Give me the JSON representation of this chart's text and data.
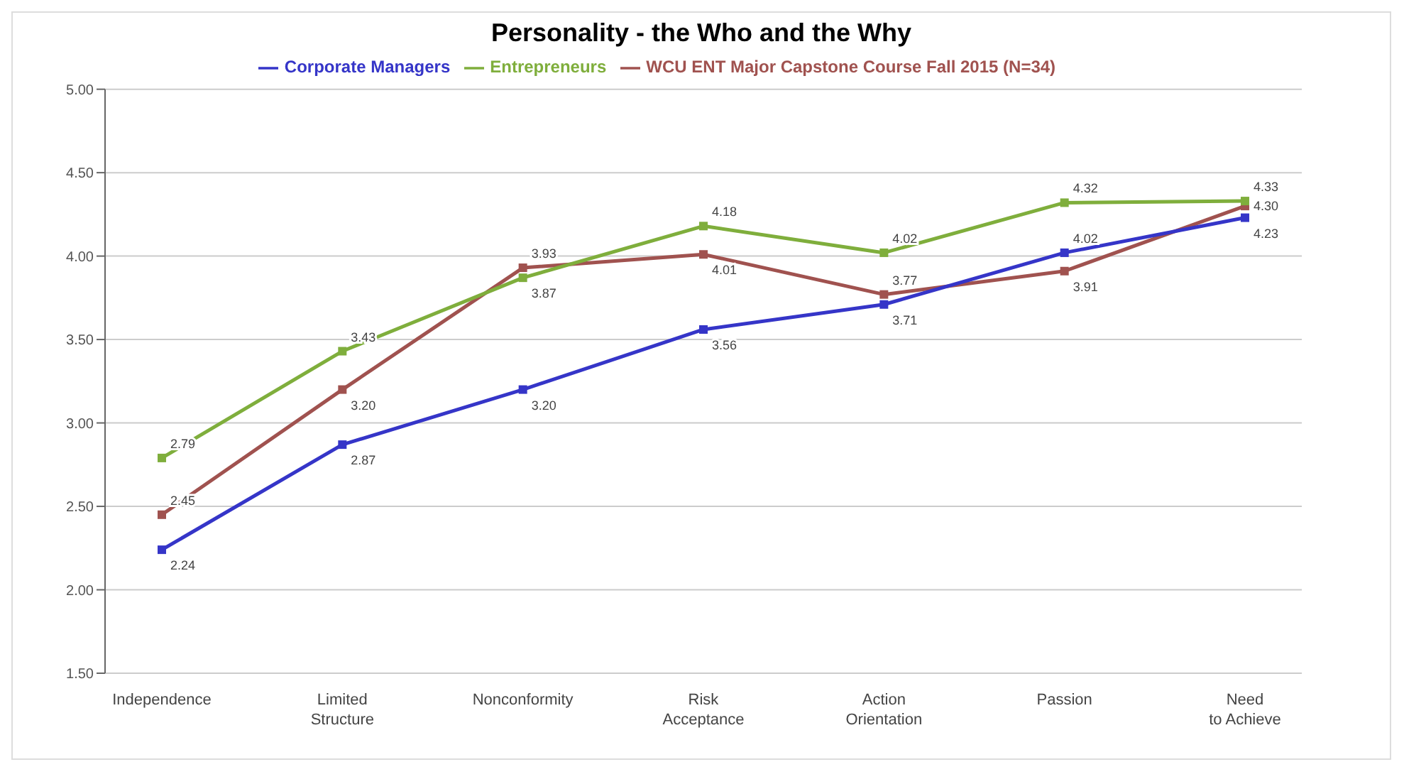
{
  "chart_data": {
    "type": "line",
    "title": "Personality - the Who and the Why",
    "categories": [
      "Independence",
      "Limited Structure",
      "Nonconformity",
      "Risk Acceptance",
      "Action Orientation",
      "Passion",
      "Need to Achieve"
    ],
    "series": [
      {
        "name": "WCU ENT Major Capstone Course Fall 2015 (N=34)",
        "color": "#a0524f",
        "values": [
          2.45,
          3.2,
          3.93,
          4.01,
          3.77,
          3.91,
          4.3
        ],
        "value_labels": [
          "2.45",
          "3.20",
          "3.93",
          "4.01",
          "3.77",
          "3.91",
          "4.30"
        ]
      },
      {
        "name": "Corporate Managers",
        "color": "#3535c8",
        "values": [
          2.24,
          2.87,
          3.2,
          3.56,
          3.71,
          4.02,
          4.23
        ],
        "value_labels": [
          "2.24",
          "2.87",
          "3.20",
          "3.56",
          "3.71",
          "4.02",
          "4.23"
        ]
      },
      {
        "name": "Entrepreneurs",
        "color": "#7fae3c",
        "values": [
          2.79,
          3.43,
          3.87,
          4.18,
          4.02,
          4.32,
          4.33
        ],
        "value_labels": [
          "2.79",
          "3.43",
          "3.87",
          "4.18",
          "4.02",
          "4.32",
          "4.33"
        ]
      }
    ],
    "ylim": [
      1.5,
      5
    ],
    "yticks": [
      {
        "value": 1.5,
        "label": "1.50"
      },
      {
        "value": 2,
        "label": "2.00"
      },
      {
        "value": 2.5,
        "label": "2.50"
      },
      {
        "value": 3,
        "label": "3.00"
      },
      {
        "value": 3.5,
        "label": "3.50"
      },
      {
        "value": 4,
        "label": "4.00"
      },
      {
        "value": 4.5,
        "label": "4.50"
      },
      {
        "value": 5,
        "label": "5.00"
      }
    ],
    "grid": "y",
    "legend": "top",
    "marker": "square",
    "line_style": "solid"
  }
}
